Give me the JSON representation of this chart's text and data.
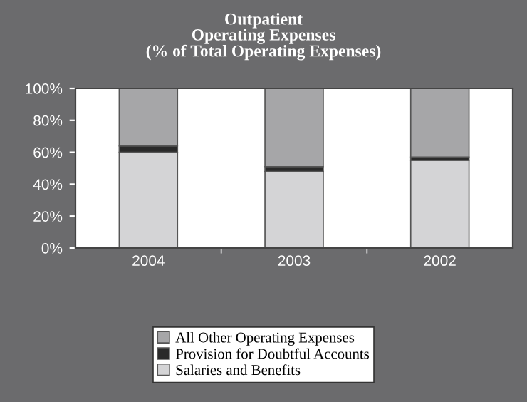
{
  "chart_data": {
    "type": "bar",
    "stacked": true,
    "title": "Outpatient\nOperating Expenses\n(% of Total Operating Expenses)",
    "categories": [
      "2004",
      "2003",
      "2002"
    ],
    "series": [
      {
        "name": "Salaries and Benefits",
        "color": "#d4d4d6",
        "values": [
          60,
          48,
          55
        ]
      },
      {
        "name": "Provision for Doubtful Accounts",
        "color": "#2a2a2a",
        "values": [
          4,
          3,
          2
        ]
      },
      {
        "name": "All Other Operating Expenses",
        "color": "#a6a6a8",
        "values": [
          36,
          49,
          43
        ]
      }
    ],
    "ylim": [
      0,
      100
    ],
    "yticks": [
      {
        "value": 0,
        "label": "0%"
      },
      {
        "value": 20,
        "label": "20%"
      },
      {
        "value": 40,
        "label": "40%"
      },
      {
        "value": 60,
        "label": "60%"
      },
      {
        "value": 80,
        "label": "80%"
      },
      {
        "value": 100,
        "label": "100%"
      }
    ],
    "grid": false,
    "legend": "bottom"
  }
}
